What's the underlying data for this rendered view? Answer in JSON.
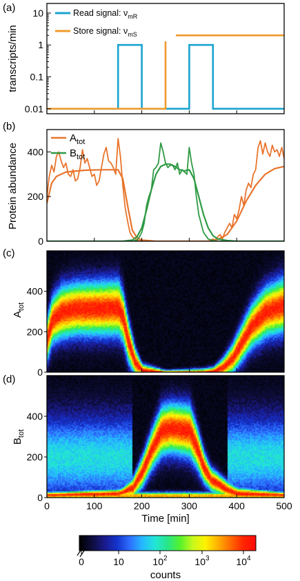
{
  "figure": {
    "x_axis_label": "Time [min]",
    "x_ticks": [
      "0",
      "100",
      "200",
      "300",
      "400",
      "500"
    ]
  },
  "chart_data": [
    {
      "panel": "(a)",
      "type": "line",
      "ylabel": "transcripts/min",
      "yscale": "log",
      "ylim": [
        0.007,
        20
      ],
      "y_ticks": [
        "0.01",
        "0.1",
        "1",
        "10"
      ],
      "xlim": [
        0,
        500
      ],
      "series": [
        {
          "name": "Read signal: ν",
          "name_sub": "mR",
          "color": "#1aa3cf",
          "x": [
            0,
            150,
            150,
            200,
            200,
            300,
            300,
            350,
            350,
            500
          ],
          "y": [
            0.01,
            0.01,
            1,
            1,
            0.01,
            0.01,
            1,
            1,
            0.01,
            0.01
          ]
        },
        {
          "name": "Store signal: ν",
          "name_sub": "mS",
          "color": "#ef9a2c",
          "x": [
            0,
            250,
            250,
            500
          ],
          "y": [
            0.01,
            0.01,
            2,
            2
          ]
        }
      ]
    },
    {
      "panel": "(b)",
      "type": "line",
      "ylabel": "Protein abundance",
      "ylim": [
        0,
        500
      ],
      "y_ticks": [
        "0",
        "200",
        "400"
      ],
      "xlim": [
        0,
        500
      ],
      "series": [
        {
          "name": "A",
          "name_sub": "tot",
          "color": "#e8742c",
          "x": [
            0,
            5,
            10,
            15,
            20,
            25,
            30,
            35,
            40,
            45,
            50,
            55,
            60,
            65,
            70,
            75,
            80,
            85,
            90,
            95,
            100,
            105,
            110,
            115,
            120,
            125,
            130,
            135,
            140,
            145,
            150,
            155,
            160,
            165,
            170,
            175,
            180,
            190,
            200,
            250,
            300,
            340,
            350,
            355,
            360,
            365,
            370,
            375,
            380,
            385,
            390,
            395,
            400,
            405,
            410,
            415,
            420,
            425,
            430,
            435,
            440,
            445,
            450,
            455,
            460,
            465,
            470,
            475,
            480,
            485,
            490,
            495,
            500
          ],
          "y": [
            200,
            290,
            340,
            310,
            380,
            400,
            360,
            330,
            350,
            300,
            290,
            320,
            270,
            280,
            330,
            410,
            350,
            370,
            330,
            290,
            300,
            250,
            270,
            330,
            390,
            420,
            360,
            350,
            330,
            300,
            460,
            380,
            250,
            150,
            90,
            40,
            20,
            5,
            0,
            0,
            0,
            0,
            10,
            5,
            20,
            30,
            10,
            40,
            60,
            80,
            60,
            120,
            100,
            140,
            200,
            160,
            230,
            260,
            240,
            300,
            320,
            420,
            450,
            390,
            440,
            400,
            380,
            430,
            400,
            410,
            380,
            420,
            370
          ]
        },
        {
          "name": "A",
          "name_sub": "tot",
          "color": "#e8742c",
          "line": "mean",
          "x": [
            0,
            10,
            20,
            40,
            80,
            120,
            150,
            160,
            170,
            180,
            190,
            200,
            230,
            250,
            300,
            340,
            360,
            380,
            400,
            420,
            440,
            460,
            480,
            500
          ],
          "y": [
            170,
            260,
            290,
            310,
            318,
            320,
            320,
            280,
            160,
            50,
            15,
            5,
            0,
            0,
            0,
            0,
            8,
            30,
            90,
            180,
            250,
            300,
            325,
            335
          ]
        },
        {
          "name": "B",
          "name_sub": "tot",
          "color": "#2e9a43",
          "x": [
            0,
            180,
            190,
            195,
            200,
            205,
            210,
            215,
            220,
            225,
            230,
            235,
            240,
            245,
            250,
            255,
            260,
            265,
            270,
            275,
            280,
            285,
            290,
            295,
            300,
            305,
            310,
            315,
            320,
            330,
            340,
            350,
            360,
            380,
            500
          ],
          "y": [
            0,
            0,
            5,
            20,
            40,
            80,
            160,
            200,
            230,
            320,
            330,
            350,
            440,
            400,
            350,
            330,
            340,
            340,
            320,
            350,
            300,
            320,
            310,
            300,
            420,
            350,
            300,
            200,
            120,
            40,
            10,
            3,
            0,
            0,
            0
          ]
        },
        {
          "name": "B",
          "name_sub": "tot",
          "color": "#2e9a43",
          "line": "mean",
          "x": [
            0,
            160,
            180,
            190,
            200,
            210,
            220,
            230,
            240,
            250,
            260,
            270,
            280,
            290,
            300,
            310,
            320,
            330,
            340,
            350,
            360,
            380,
            400,
            500
          ],
          "y": [
            0,
            0,
            5,
            20,
            60,
            140,
            230,
            300,
            335,
            345,
            345,
            335,
            320,
            315,
            320,
            280,
            200,
            120,
            60,
            25,
            10,
            3,
            0,
            0
          ]
        }
      ]
    },
    {
      "panel": "(c)",
      "type": "heatmap",
      "ylabel": "A",
      "ylabel_sub": "tot",
      "ylim": [
        0,
        600
      ],
      "y_ticks": [
        "0",
        "200",
        "400"
      ],
      "xlim": [
        0,
        500
      ],
      "colorscale": "log counts",
      "ridge_mean": [
        [
          0,
          170
        ],
        [
          10,
          260
        ],
        [
          30,
          300
        ],
        [
          60,
          315
        ],
        [
          150,
          320
        ],
        [
          160,
          270
        ],
        [
          170,
          160
        ],
        [
          185,
          50
        ],
        [
          200,
          12
        ],
        [
          250,
          0
        ],
        [
          330,
          0
        ],
        [
          350,
          6
        ],
        [
          370,
          25
        ],
        [
          390,
          70
        ],
        [
          410,
          150
        ],
        [
          430,
          230
        ],
        [
          460,
          300
        ],
        [
          500,
          335
        ]
      ],
      "ridge_sd": [
        [
          0,
          70
        ],
        [
          30,
          85
        ],
        [
          150,
          90
        ],
        [
          170,
          70
        ],
        [
          200,
          20
        ],
        [
          250,
          8
        ],
        [
          350,
          15
        ],
        [
          400,
          55
        ],
        [
          450,
          80
        ],
        [
          500,
          90
        ]
      ]
    },
    {
      "panel": "(d)",
      "type": "heatmap",
      "ylabel": "B",
      "ylabel_sub": "tot",
      "ylim": [
        0,
        600
      ],
      "y_ticks": [
        "0",
        "200",
        "400"
      ],
      "xlim": [
        0,
        500
      ],
      "colorscale": "log counts",
      "ridge_mean": [
        [
          0,
          15
        ],
        [
          150,
          22
        ],
        [
          180,
          50
        ],
        [
          200,
          130
        ],
        [
          220,
          240
        ],
        [
          240,
          330
        ],
        [
          260,
          345
        ],
        [
          300,
          330
        ],
        [
          315,
          250
        ],
        [
          330,
          150
        ],
        [
          345,
          90
        ],
        [
          360,
          70
        ],
        [
          380,
          40
        ],
        [
          400,
          22
        ],
        [
          500,
          15
        ]
      ],
      "ridge_sd": [
        [
          0,
          10
        ],
        [
          160,
          15
        ],
        [
          200,
          50
        ],
        [
          240,
          80
        ],
        [
          300,
          85
        ],
        [
          340,
          40
        ],
        [
          400,
          20
        ],
        [
          500,
          10
        ]
      ]
    }
  ],
  "colorbar": {
    "label": "counts",
    "ticks": [
      "0",
      "10",
      "10",
      "10",
      "10"
    ],
    "tick_sups": [
      "",
      "",
      "2",
      "3",
      "4"
    ],
    "stops": [
      "#000000",
      "#0d0d3a",
      "#1a1a8c",
      "#1433cc",
      "#2e6fff",
      "#25b8ff",
      "#22e6d6",
      "#28e688",
      "#55f22d",
      "#c8f91c",
      "#fff200",
      "#ffb000",
      "#ff6a00",
      "#ff2500",
      "#ff0a0a"
    ]
  },
  "panel_labels": [
    "(a)",
    "(b)",
    "(c)",
    "(d)"
  ]
}
